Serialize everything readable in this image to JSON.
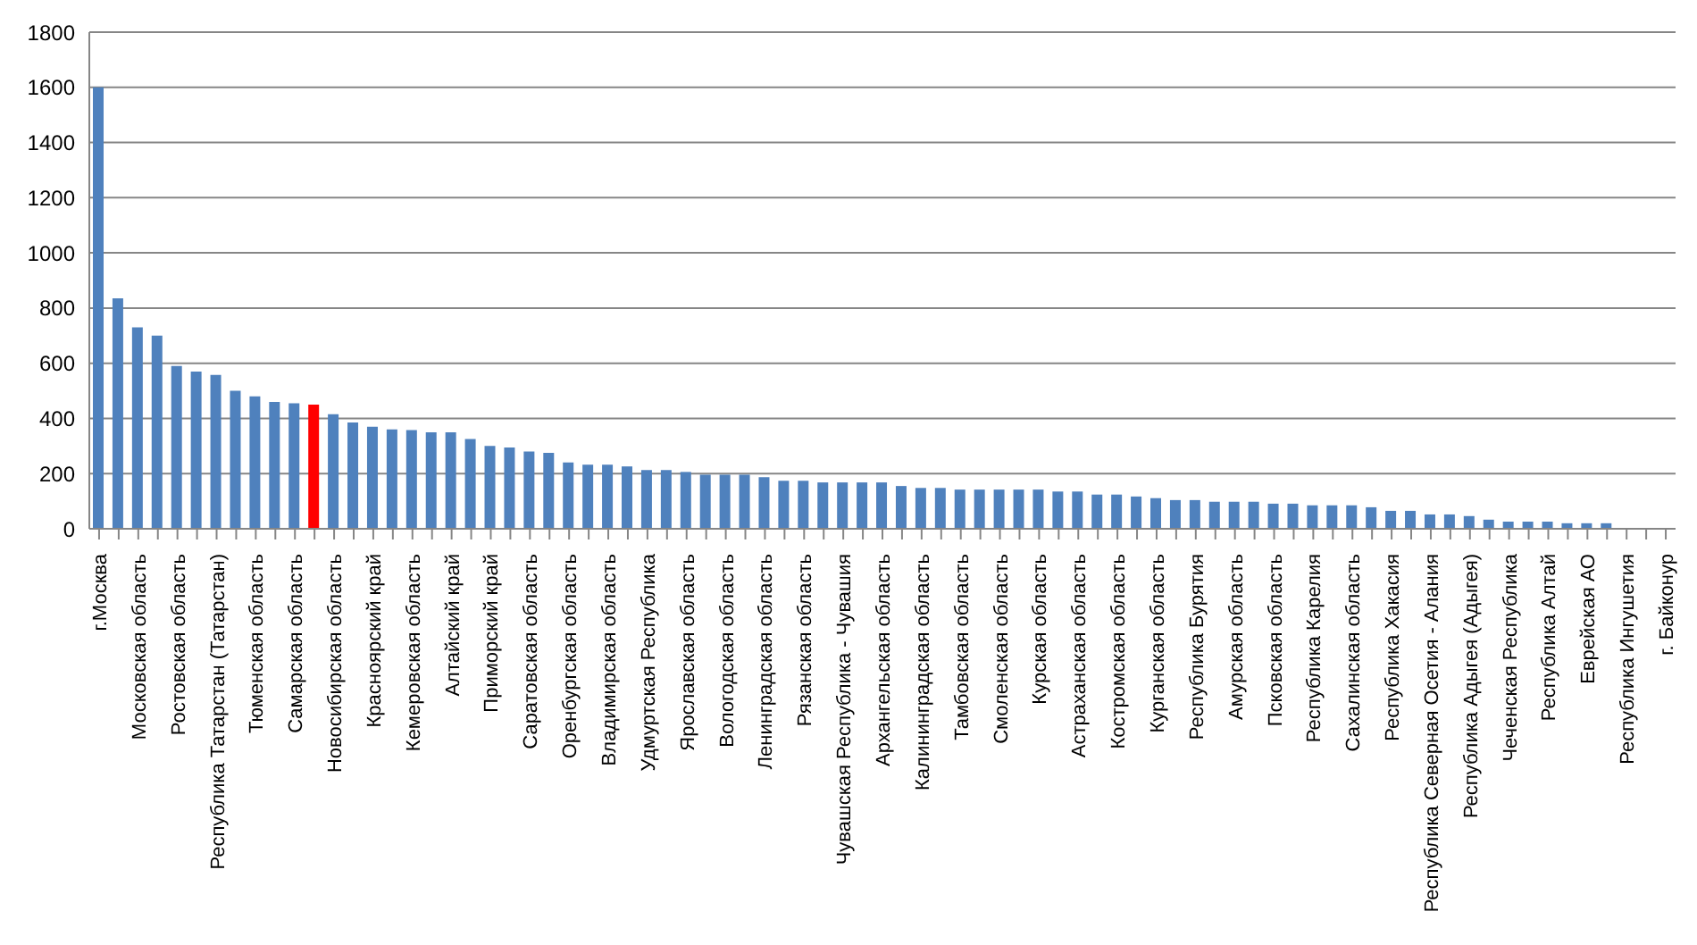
{
  "chart_data": {
    "type": "bar",
    "categories": [
      "г.Москва",
      null,
      "Московская область",
      null,
      "Ростовская область",
      null,
      "Республика Татарстан (Татарстан)",
      null,
      "Тюменская область",
      null,
      "Самарская область",
      null,
      "Новосибирская область",
      null,
      "Красноярский край",
      null,
      "Кемеровская область",
      null,
      "Алтайский край",
      null,
      "Приморский край",
      null,
      "Саратовская область",
      null,
      "Оренбургская область",
      null,
      "Владимирская область",
      null,
      "Удмуртская Республика",
      null,
      "Ярославская область",
      null,
      "Вологодская область",
      null,
      "Ленинградская область",
      null,
      "Рязанская область",
      null,
      "Чувашская Республика - Чувашия",
      null,
      "Архангельская область",
      null,
      "Калининградская область",
      null,
      "Тамбовская область",
      null,
      "Смоленская область",
      null,
      "Курская область",
      null,
      "Астраханская область",
      null,
      "Костромская область",
      null,
      "Курганская область",
      null,
      "Республика Бурятия",
      null,
      "Амурская область",
      null,
      "Псковская область",
      null,
      "Республика Карелия",
      null,
      "Сахалинская область",
      null,
      "Республика Хакасия",
      null,
      "Республика Северная Осетия - Алания",
      null,
      "Республика Адыгея (Адыгея)",
      null,
      "Чеченская Республика",
      null,
      "Республика Алтай",
      null,
      "Еврейская АО",
      null,
      "Республика Ингушетия",
      null,
      "г. Байконур"
    ],
    "values": [
      1600,
      835,
      730,
      700,
      590,
      570,
      558,
      500,
      480,
      460,
      455,
      450,
      415,
      385,
      370,
      360,
      358,
      350,
      350,
      325,
      300,
      295,
      280,
      275,
      240,
      232,
      232,
      226,
      213,
      213,
      206,
      196,
      196,
      196,
      187,
      174,
      174,
      168,
      168,
      168,
      168,
      155,
      148,
      148,
      142,
      142,
      142,
      142,
      142,
      135,
      135,
      124,
      124,
      117,
      111,
      104,
      104,
      98,
      98,
      98,
      91,
      91,
      85,
      85,
      85,
      78,
      65,
      65,
      52,
      52,
      46,
      33,
      26,
      26,
      26,
      20,
      20,
      20,
      0,
      0,
      0
    ],
    "colors": [
      "#4f81bd",
      "#4f81bd",
      "#4f81bd",
      "#4f81bd",
      "#4f81bd",
      "#4f81bd",
      "#4f81bd",
      "#4f81bd",
      "#4f81bd",
      "#4f81bd",
      "#4f81bd",
      "#ff0000",
      "#4f81bd",
      "#4f81bd",
      "#4f81bd",
      "#4f81bd",
      "#4f81bd",
      "#4f81bd",
      "#4f81bd",
      "#4f81bd",
      "#4f81bd",
      "#4f81bd",
      "#4f81bd",
      "#4f81bd",
      "#4f81bd",
      "#4f81bd",
      "#4f81bd",
      "#4f81bd",
      "#4f81bd",
      "#4f81bd",
      "#4f81bd",
      "#4f81bd",
      "#4f81bd",
      "#4f81bd",
      "#4f81bd",
      "#4f81bd",
      "#4f81bd",
      "#4f81bd",
      "#4f81bd",
      "#4f81bd",
      "#4f81bd",
      "#4f81bd",
      "#4f81bd",
      "#4f81bd",
      "#4f81bd",
      "#4f81bd",
      "#4f81bd",
      "#4f81bd",
      "#4f81bd",
      "#4f81bd",
      "#4f81bd",
      "#4f81bd",
      "#4f81bd",
      "#4f81bd",
      "#4f81bd",
      "#4f81bd",
      "#4f81bd",
      "#4f81bd",
      "#4f81bd",
      "#4f81bd",
      "#4f81bd",
      "#4f81bd",
      "#4f81bd",
      "#4f81bd",
      "#4f81bd",
      "#4f81bd",
      "#4f81bd",
      "#4f81bd",
      "#4f81bd",
      "#4f81bd",
      "#4f81bd",
      "#4f81bd",
      "#4f81bd",
      "#4f81bd",
      "#4f81bd",
      "#4f81bd",
      "#4f81bd",
      "#4f81bd",
      "#4f81bd",
      "#4f81bd",
      "#4f81bd"
    ],
    "ylim": [
      0,
      1800
    ],
    "yticks": [
      0,
      200,
      400,
      600,
      800,
      1000,
      1200,
      1400,
      1600,
      1800
    ],
    "grid": "y",
    "legend": false
  }
}
